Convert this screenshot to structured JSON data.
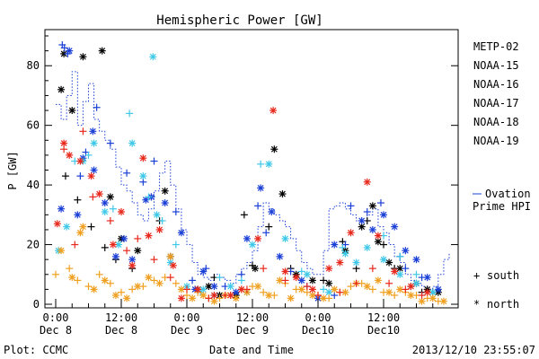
{
  "chart_data": {
    "type": "scatter",
    "title": "Hemispheric Power [GW]",
    "xlabel": "Date and Time",
    "ylabel": "P [GW]",
    "ylim": [
      0,
      90
    ],
    "yticks": [
      0,
      20,
      40,
      60,
      80
    ],
    "xlim": [
      0,
      72
    ],
    "x_unit": "hours since Dec 8 00:00",
    "xticks": [
      {
        "x": 0,
        "time": "0:00",
        "date": "Dec 8"
      },
      {
        "x": 12,
        "time": "12:00",
        "date": "Dec 8"
      },
      {
        "x": 24,
        "time": "0:00",
        "date": "Dec 9"
      },
      {
        "x": 36,
        "time": "12:00",
        "date": "Dec 9"
      },
      {
        "x": 48,
        "time": "0:00",
        "date": "Dec10"
      },
      {
        "x": 60,
        "time": "12:00",
        "date": "Dec10"
      }
    ],
    "grid": false,
    "legend_position": "right",
    "footer_left": "Plot: CCMC",
    "footer_right": "2013/12/10 23:55:07",
    "marker_legend": [
      {
        "symbol": "+",
        "label": "south"
      },
      {
        "symbol": "*",
        "label": "north"
      }
    ],
    "ovation": {
      "label_line1": "Ovation",
      "label_line2": "Prime HPI",
      "color": "#1a3fd6",
      "x": [
        0,
        1,
        2,
        3,
        4,
        5,
        6,
        7,
        8,
        9,
        10,
        11,
        12,
        13,
        14,
        15,
        16,
        17,
        18,
        19,
        20,
        21,
        22,
        23,
        24,
        25,
        26,
        27,
        28,
        29,
        30,
        31,
        32,
        33,
        34,
        35,
        36,
        37,
        38,
        39,
        40,
        41,
        42,
        43,
        44,
        45,
        46,
        47,
        48,
        49,
        50,
        51,
        52,
        53,
        54,
        55,
        56,
        57,
        58,
        59,
        60,
        61,
        62,
        63,
        64,
        65,
        66,
        67,
        68,
        69,
        70,
        71,
        72
      ],
      "y": [
        67,
        62,
        70,
        78,
        60,
        68,
        74,
        62,
        58,
        55,
        52,
        46,
        40,
        38,
        34,
        30,
        28,
        32,
        38,
        44,
        48,
        40,
        32,
        25,
        20,
        14,
        10,
        9,
        8,
        10,
        9,
        8,
        7,
        10,
        12,
        14,
        18,
        26,
        34,
        32,
        30,
        28,
        26,
        22,
        18,
        14,
        12,
        10,
        10,
        18,
        32,
        33,
        34,
        32,
        30,
        28,
        28,
        30,
        32,
        26,
        24,
        20,
        16,
        14,
        10,
        8,
        7,
        6,
        5,
        6,
        10,
        15,
        17
      ]
    },
    "series": [
      {
        "name": "METP-02",
        "color": "#000000",
        "south": {
          "x": [
            1.8,
            4,
            6.5,
            9,
            11,
            14,
            17.5,
            19,
            29,
            34.5,
            36,
            39,
            43,
            49,
            52.5,
            55,
            57,
            60,
            62,
            65,
            67,
            69
          ],
          "y": [
            43,
            35,
            26,
            19,
            15,
            12,
            36,
            28,
            9,
            30,
            13,
            26,
            12,
            8,
            21,
            12,
            28,
            20,
            12,
            6,
            4,
            4
          ]
        },
        "north": {
          "x": [
            1,
            1.5,
            3,
            5,
            8.5,
            10,
            12,
            15,
            20,
            21,
            26,
            28,
            30,
            33,
            36.5,
            40,
            41.5,
            44,
            47,
            50,
            53,
            56,
            58,
            59,
            61,
            63,
            66,
            68,
            70
          ],
          "y": [
            72,
            84,
            65,
            83,
            85,
            36,
            22,
            18,
            38,
            16,
            5,
            6,
            3,
            3,
            12,
            52,
            37,
            10,
            8,
            7,
            18,
            26,
            33,
            21,
            14,
            12,
            7,
            5,
            4
          ]
        }
      },
      {
        "name": "NOAA-15",
        "color": "#1a3fd6",
        "south": {
          "x": [
            1.2,
            1.6,
            2.2,
            4.5,
            5.5,
            7.5,
            10,
            13,
            16,
            18,
            22,
            25,
            27.5,
            31,
            34,
            37,
            38.5,
            43,
            46,
            51,
            53,
            54,
            57,
            59.5,
            63,
            64,
            67
          ],
          "y": [
            87,
            86,
            84,
            43,
            51,
            66,
            54,
            44,
            41,
            48,
            31,
            8,
            12,
            6,
            10,
            33,
            24,
            11,
            6,
            3,
            20,
            33,
            31,
            34,
            16,
            12,
            9
          ]
        },
        "north": {
          "x": [
            1,
            2.5,
            4,
            5,
            6.8,
            7,
            9,
            11,
            12.5,
            14,
            16.5,
            17.5,
            20,
            23,
            25.5,
            27,
            29,
            33,
            35,
            37.5,
            39.5,
            41,
            45,
            48,
            51,
            56,
            58,
            60,
            62,
            64,
            66,
            68,
            70
          ],
          "y": [
            32,
            85,
            30,
            49,
            58,
            45,
            34,
            16,
            22,
            15,
            35,
            36,
            34,
            24,
            5,
            11,
            6,
            4,
            22,
            39,
            31,
            16,
            8,
            2,
            20,
            28,
            25,
            30,
            26,
            18,
            15,
            9,
            5
          ]
        }
      },
      {
        "name": "NOAA-16",
        "color": "#3fc8e8",
        "south": {
          "x": [
            3.5,
            6,
            10.5,
            13.5,
            17,
            19.5,
            22,
            26.5,
            30,
            34,
            37.5,
            45,
            49,
            52.5,
            60,
            63,
            66
          ],
          "y": [
            48,
            50,
            32,
            64,
            36,
            28,
            20,
            4,
            9,
            8,
            47,
            11,
            5,
            19,
            23,
            16,
            10
          ]
        },
        "north": {
          "x": [
            0.5,
            2,
            5,
            7,
            9,
            11.5,
            14,
            16,
            17.8,
            18.5,
            21,
            24,
            27,
            29,
            32,
            35,
            36,
            39,
            42,
            46,
            50,
            53,
            55,
            57,
            60,
            63,
            66,
            69
          ],
          "y": [
            18,
            26,
            48,
            54,
            31,
            20,
            54,
            43,
            83,
            30,
            14,
            6,
            5,
            3,
            6,
            4,
            20,
            47,
            22,
            10,
            4,
            17,
            14,
            19,
            15,
            10,
            7,
            4
          ]
        }
      },
      {
        "name": "NOAA-17",
        "color": "#33d466",
        "south": {
          "x": [],
          "y": []
        },
        "north": {
          "x": [],
          "y": []
        }
      },
      {
        "name": "NOAA-18",
        "color": "#f0a020",
        "south": {
          "x": [
            0,
            2.5,
            4,
            6,
            8,
            10,
            12,
            14,
            16,
            18,
            20,
            22,
            24,
            26,
            28,
            30,
            32,
            34,
            36,
            38,
            40,
            42,
            44,
            46,
            48,
            50,
            52,
            54,
            56,
            58,
            60,
            62,
            64,
            66,
            68,
            70
          ],
          "y": [
            10,
            12,
            8,
            6,
            10,
            7,
            4,
            5,
            6,
            8,
            9,
            7,
            3,
            4,
            2,
            2,
            3,
            5,
            6,
            4,
            3,
            7,
            5,
            4,
            3,
            2,
            4,
            6,
            7,
            5,
            4,
            3,
            4,
            3,
            2,
            1
          ]
        },
        "north": {
          "x": [
            1,
            3,
            4.5,
            5,
            7,
            9,
            11,
            13,
            15,
            17,
            19,
            21,
            23,
            25,
            27,
            29,
            31,
            33,
            35,
            37,
            39,
            41,
            43,
            45,
            47,
            49,
            51,
            53,
            55,
            57,
            59,
            61,
            63,
            65,
            67,
            69,
            71
          ],
          "y": [
            18,
            9,
            24,
            26,
            5,
            8,
            3,
            2,
            6,
            9,
            7,
            16,
            5,
            2,
            3,
            1,
            3,
            2,
            4,
            6,
            3,
            8,
            2,
            5,
            3,
            2,
            5,
            4,
            7,
            6,
            8,
            4,
            5,
            3,
            1,
            2,
            1
          ]
        }
      },
      {
        "name": "NOAA-19",
        "color": "#e8281c",
        "south": {
          "x": [
            1.5,
            3.5,
            5,
            6.8,
            10,
            13,
            15,
            18,
            21,
            24,
            28,
            31,
            35,
            38,
            42,
            46,
            48,
            52,
            55,
            58,
            61,
            64,
            67
          ],
          "y": [
            52,
            20,
            58,
            36,
            28,
            18,
            22,
            15,
            9,
            5,
            2,
            3,
            5,
            12,
            8,
            6,
            3,
            4,
            7,
            12,
            7,
            5,
            3
          ]
        },
        "north": {
          "x": [
            0.3,
            1.5,
            2.5,
            4.5,
            6.5,
            8,
            10.5,
            12,
            14,
            16,
            17,
            19,
            21.5,
            23,
            26,
            29,
            32,
            34,
            37,
            39.8,
            42,
            44,
            47,
            50,
            52,
            54,
            57,
            59,
            62,
            65,
            68
          ],
          "y": [
            27,
            54,
            50,
            48,
            43,
            37,
            20,
            31,
            13,
            49,
            23,
            25,
            13,
            2,
            5,
            3,
            3,
            5,
            22,
            65,
            11,
            9,
            5,
            12,
            14,
            24,
            41,
            23,
            11,
            6,
            4
          ]
        }
      }
    ]
  }
}
